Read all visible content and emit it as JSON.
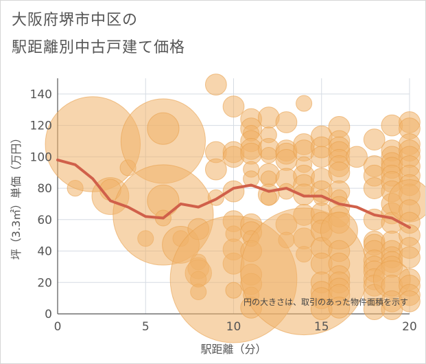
{
  "header": {
    "title_line1": "大阪府堺市中区の",
    "title_line2": "駅距離別中古戸建て価格"
  },
  "colors": {
    "bubble": "#f0b26a",
    "bubble_stroke": "#e8a04c",
    "trend_line": "#d0604a",
    "grid": "#d5dbe3",
    "text": "#555555"
  },
  "chart_data": {
    "type": "scatter",
    "xlabel": "駅距離（分）",
    "ylabel": "坪（3.3㎡）単価（万円）",
    "xlim": [
      0,
      20
    ],
    "ylim": [
      0,
      150
    ],
    "x_ticks": [
      "0",
      "5",
      "10",
      "15",
      "20"
    ],
    "y_ticks": [
      "0",
      "20",
      "40",
      "60",
      "80",
      "100",
      "120",
      "140"
    ],
    "grid": true,
    "note": "円の大きさは、取引のあった物件面積を示す",
    "series": [
      {
        "type": "line",
        "points": [
          [
            0,
            98
          ],
          [
            1,
            95
          ],
          [
            2,
            86
          ],
          [
            3,
            72
          ],
          [
            4,
            68
          ],
          [
            5,
            62
          ],
          [
            6,
            61
          ],
          [
            7,
            70
          ],
          [
            8,
            68
          ],
          [
            9,
            73
          ],
          [
            10,
            80
          ],
          [
            11,
            82
          ],
          [
            12,
            78
          ],
          [
            13,
            80
          ],
          [
            14,
            75
          ],
          [
            15,
            75
          ],
          [
            16,
            70
          ],
          [
            17,
            68
          ],
          [
            18,
            63
          ],
          [
            19,
            61
          ],
          [
            20,
            55
          ]
        ]
      },
      {
        "type": "bubble",
        "points": [
          [
            1,
            80,
            3
          ],
          [
            2,
            108,
            18
          ],
          [
            3,
            75,
            7
          ],
          [
            3,
            79,
            4
          ],
          [
            4,
            93,
            3
          ],
          [
            5,
            48,
            3
          ],
          [
            6,
            110,
            16
          ],
          [
            6,
            118,
            6
          ],
          [
            6,
            63,
            19
          ],
          [
            6,
            72,
            6
          ],
          [
            6,
            61,
            3
          ],
          [
            7,
            48,
            3
          ],
          [
            7,
            44,
            7
          ],
          [
            8,
            54,
            4
          ],
          [
            8,
            33,
            3
          ],
          [
            8,
            29,
            4
          ],
          [
            8,
            26,
            5
          ],
          [
            8,
            22,
            3
          ],
          [
            8,
            14,
            3
          ],
          [
            9,
            146,
            4
          ],
          [
            9,
            103,
            4
          ],
          [
            9,
            92,
            4
          ],
          [
            9,
            74,
            3
          ],
          [
            10,
            132,
            4
          ],
          [
            10,
            103,
            4
          ],
          [
            10,
            100,
            4
          ],
          [
            10,
            78,
            4
          ],
          [
            10,
            59,
            4
          ],
          [
            10,
            51,
            3
          ],
          [
            10,
            41,
            4
          ],
          [
            10,
            32,
            4
          ],
          [
            10,
            22,
            24
          ],
          [
            10,
            15,
            3
          ],
          [
            11,
            124,
            4
          ],
          [
            11,
            118,
            4
          ],
          [
            11,
            115,
            3
          ],
          [
            11,
            110,
            4
          ],
          [
            11,
            105,
            4
          ],
          [
            11,
            102,
            4
          ],
          [
            11,
            92,
            3
          ],
          [
            11,
            86,
            3
          ],
          [
            11,
            57,
            4
          ],
          [
            11,
            52,
            4
          ],
          [
            11,
            48,
            3
          ],
          [
            11,
            40,
            4
          ],
          [
            11,
            25,
            4
          ],
          [
            11,
            19,
            4
          ],
          [
            11,
            12,
            3
          ],
          [
            11,
            4,
            4
          ],
          [
            12,
            125,
            4
          ],
          [
            12,
            114,
            3
          ],
          [
            12,
            105,
            4
          ],
          [
            12,
            101,
            3
          ],
          [
            12,
            89,
            4
          ],
          [
            12,
            86,
            3
          ],
          [
            12,
            76,
            4
          ],
          [
            12,
            74,
            3
          ],
          [
            13,
            122,
            4
          ],
          [
            13,
            104,
            4
          ],
          [
            13,
            102,
            4
          ],
          [
            13,
            98,
            4
          ],
          [
            13,
            86,
            4
          ],
          [
            13,
            78,
            3
          ],
          [
            13,
            57,
            4
          ],
          [
            13,
            47,
            3
          ],
          [
            14,
            134,
            3
          ],
          [
            14,
            108,
            4
          ],
          [
            14,
            104,
            4
          ],
          [
            14,
            95,
            3
          ],
          [
            14,
            88,
            4
          ],
          [
            14,
            82,
            4
          ],
          [
            14,
            76,
            4
          ],
          [
            14,
            63,
            4
          ],
          [
            14,
            48,
            4
          ],
          [
            14,
            38,
            3
          ],
          [
            14,
            27,
            24
          ],
          [
            15,
            113,
            4
          ],
          [
            15,
            106,
            4
          ],
          [
            15,
            100,
            4
          ],
          [
            15,
            86,
            4
          ],
          [
            15,
            78,
            4
          ],
          [
            15,
            74,
            3
          ],
          [
            15,
            64,
            4
          ],
          [
            15,
            58,
            4
          ],
          [
            15,
            53,
            4
          ],
          [
            15,
            42,
            4
          ],
          [
            15,
            32,
            4
          ],
          [
            15,
            20,
            4
          ],
          [
            15,
            14,
            4
          ],
          [
            15,
            10,
            4
          ],
          [
            15,
            3,
            4
          ],
          [
            16,
            119,
            4
          ],
          [
            16,
            110,
            4
          ],
          [
            16,
            106,
            4
          ],
          [
            16,
            103,
            4
          ],
          [
            16,
            98,
            4
          ],
          [
            16,
            94,
            4
          ],
          [
            16,
            90,
            4
          ],
          [
            16,
            78,
            4
          ],
          [
            16,
            74,
            3
          ],
          [
            16,
            68,
            4
          ],
          [
            16,
            62,
            4
          ],
          [
            16,
            58,
            4
          ],
          [
            16,
            53,
            7
          ],
          [
            16,
            40,
            4
          ],
          [
            16,
            32,
            4
          ],
          [
            16,
            24,
            4
          ],
          [
            16,
            20,
            4
          ],
          [
            16,
            16,
            4
          ],
          [
            16,
            12,
            4
          ],
          [
            16,
            4,
            4
          ],
          [
            17,
            100,
            4
          ],
          [
            18,
            111,
            4
          ],
          [
            18,
            94,
            4
          ],
          [
            18,
            88,
            4
          ],
          [
            18,
            80,
            4
          ],
          [
            18,
            60,
            4
          ],
          [
            18,
            46,
            4
          ],
          [
            18,
            44,
            4
          ],
          [
            18,
            40,
            4
          ],
          [
            18,
            34,
            4
          ],
          [
            18,
            30,
            4
          ],
          [
            18,
            27,
            4
          ],
          [
            18,
            22,
            4
          ],
          [
            18,
            18,
            4
          ],
          [
            18,
            12,
            4
          ],
          [
            18,
            3,
            4
          ],
          [
            19,
            120,
            4
          ],
          [
            19,
            104,
            4
          ],
          [
            19,
            100,
            4
          ],
          [
            19,
            96,
            4
          ],
          [
            19,
            93,
            4
          ],
          [
            19,
            88,
            4
          ],
          [
            19,
            84,
            4
          ],
          [
            19,
            78,
            4
          ],
          [
            19,
            70,
            4
          ],
          [
            19,
            64,
            4
          ],
          [
            19,
            58,
            4
          ],
          [
            19,
            46,
            4
          ],
          [
            19,
            40,
            4
          ],
          [
            19,
            36,
            4
          ],
          [
            19,
            33,
            4
          ],
          [
            19,
            30,
            4
          ],
          [
            19,
            22,
            7
          ],
          [
            19,
            18,
            4
          ],
          [
            19,
            8,
            4
          ],
          [
            19,
            3,
            4
          ],
          [
            20,
            122,
            4
          ],
          [
            20,
            118,
            4
          ],
          [
            20,
            108,
            4
          ],
          [
            20,
            104,
            4
          ],
          [
            20,
            100,
            4
          ],
          [
            20,
            94,
            4
          ],
          [
            20,
            88,
            4
          ],
          [
            20,
            82,
            4
          ],
          [
            20,
            76,
            4
          ],
          [
            20,
            72,
            8
          ],
          [
            20,
            66,
            4
          ],
          [
            20,
            58,
            4
          ],
          [
            20,
            50,
            4
          ],
          [
            20,
            42,
            4
          ],
          [
            20,
            36,
            4
          ],
          [
            20,
            22,
            4
          ],
          [
            20,
            18,
            4
          ],
          [
            20,
            12,
            4
          ],
          [
            20,
            8,
            4
          ]
        ]
      }
    ]
  }
}
